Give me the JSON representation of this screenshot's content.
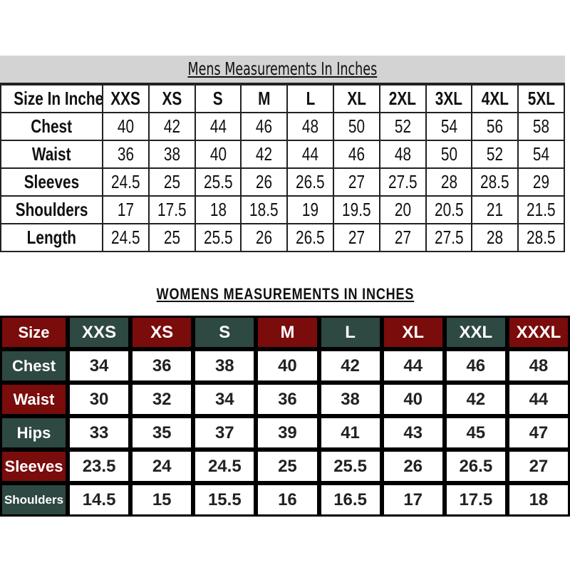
{
  "mens": {
    "title": "Mens Measurements In Inches",
    "header": [
      "Size In Inches",
      "XXS",
      "XS",
      "S",
      "M",
      "L",
      "XL",
      "2XL",
      "3XL",
      "4XL",
      "5XL"
    ],
    "rows": [
      {
        "label": "Chest",
        "values": [
          "40",
          "42",
          "44",
          "46",
          "48",
          "50",
          "52",
          "54",
          "56",
          "58"
        ]
      },
      {
        "label": "Waist",
        "values": [
          "36",
          "38",
          "40",
          "42",
          "44",
          "46",
          "48",
          "50",
          "52",
          "54"
        ]
      },
      {
        "label": "Sleeves",
        "values": [
          "24.5",
          "25",
          "25.5",
          "26",
          "26.5",
          "27",
          "27.5",
          "28",
          "28.5",
          "29"
        ]
      },
      {
        "label": "Shoulders",
        "values": [
          "17",
          "17.5",
          "18",
          "18.5",
          "19",
          "19.5",
          "20",
          "20.5",
          "21",
          "21.5"
        ]
      },
      {
        "label": "Length",
        "values": [
          "24.5",
          "25",
          "25.5",
          "26",
          "26.5",
          "27",
          "27",
          "27.5",
          "28",
          "28.5"
        ]
      }
    ]
  },
  "womens": {
    "title": "WOMENS MEASUREMENTS IN INCHES",
    "colors": {
      "red": "#7a0c0c",
      "green": "#2e4842"
    },
    "header": [
      "Size",
      "XXS",
      "XS",
      "S",
      "M",
      "L",
      "XL",
      "XXL",
      "XXXL"
    ],
    "rows": [
      {
        "label": "Chest",
        "values": [
          "34",
          "36",
          "38",
          "40",
          "42",
          "44",
          "46",
          "48"
        ]
      },
      {
        "label": "Waist",
        "values": [
          "30",
          "32",
          "34",
          "36",
          "38",
          "40",
          "42",
          "44"
        ]
      },
      {
        "label": "Hips",
        "values": [
          "33",
          "35",
          "37",
          "39",
          "41",
          "43",
          "45",
          "47"
        ]
      },
      {
        "label": "Sleeves",
        "values": [
          "23.5",
          "24",
          "24.5",
          "25",
          "25.5",
          "26",
          "26.5",
          "27"
        ]
      },
      {
        "label": "Shoulders",
        "values": [
          "14.5",
          "15",
          "15.5",
          "16",
          "16.5",
          "17",
          "17.5",
          "18"
        ]
      }
    ]
  }
}
